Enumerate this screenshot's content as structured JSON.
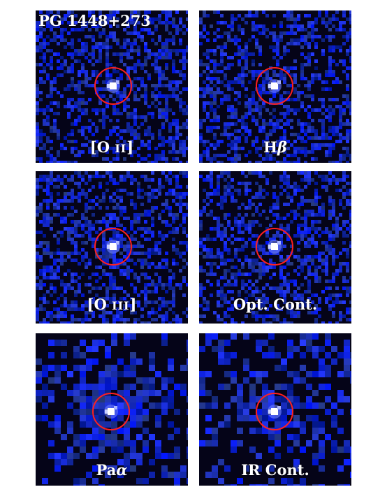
{
  "figure": {
    "title": "PG 1448+273",
    "panels": [
      {
        "id": "oii",
        "label_main": "[O ",
        "label_sc": "II",
        "label_end": "]",
        "style": "sparse",
        "halo": 0.25
      },
      {
        "id": "hbeta",
        "label_main": "H",
        "label_sc": "",
        "label_end": "β",
        "style": "sparse",
        "halo": 0.1
      },
      {
        "id": "oiii",
        "label_main": "[O ",
        "label_sc": "III",
        "label_end": "]",
        "style": "sparse",
        "halo": 0.6
      },
      {
        "id": "optcont",
        "label_main": "Opt. Cont.",
        "label_sc": "",
        "label_end": "",
        "style": "sparse",
        "halo": 0.15
      },
      {
        "id": "paalpha",
        "label_main": "Pa",
        "label_sc": "",
        "label_end": "α",
        "style": "blocky",
        "halo": 1.0
      },
      {
        "id": "ircont",
        "label_main": "IR Cont.",
        "label_sc": "",
        "label_end": "",
        "style": "blocky",
        "halo": 0.7
      }
    ],
    "colors": {
      "background_noise": "#1a2cff",
      "deep_bg": "#050418",
      "circle": "#ff2020",
      "core": "#ffffff"
    }
  }
}
